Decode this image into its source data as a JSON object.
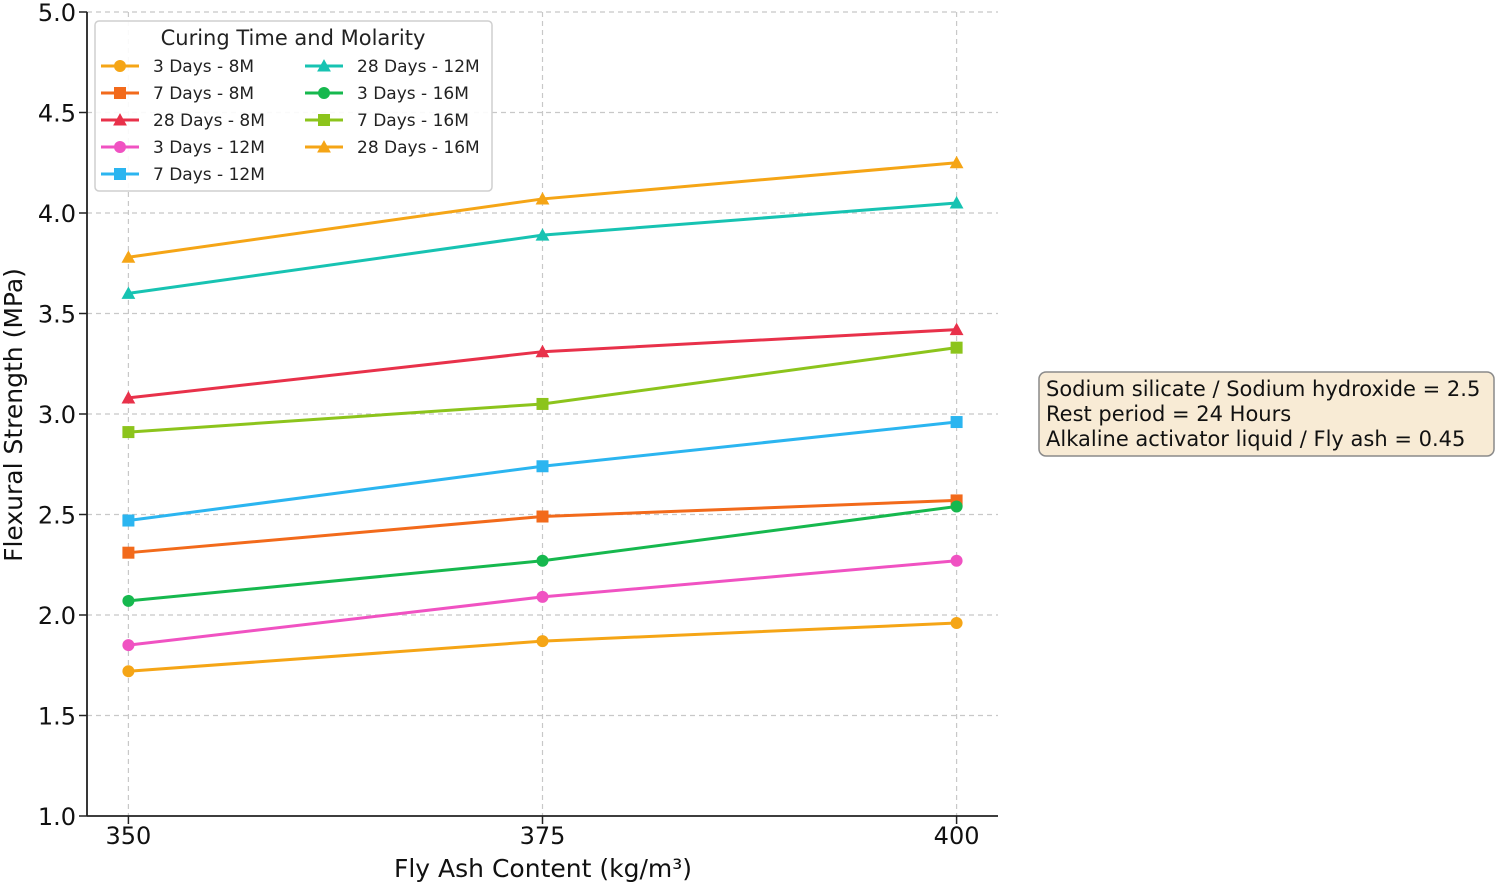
{
  "chart_data": {
    "type": "line",
    "title": "",
    "xlabel": "Fly Ash Content (kg/m³)",
    "ylabel": "Flexural Strength (MPa)",
    "x": [
      350,
      375,
      400
    ],
    "x_tick_labels": [
      "350",
      "375",
      "400"
    ],
    "xlim": [
      347.5,
      402.5
    ],
    "ylim": [
      1.0,
      5.0
    ],
    "y_ticks": [
      1.0,
      1.5,
      2.0,
      2.5,
      3.0,
      3.5,
      4.0,
      4.5,
      5.0
    ],
    "y_tick_labels": [
      "1.0",
      "1.5",
      "2.0",
      "2.5",
      "3.0",
      "3.5",
      "4.0",
      "4.5",
      "5.0"
    ],
    "grid": true,
    "legend": {
      "title": "Curing Time and Molarity",
      "placement": "top-left",
      "columns": 2
    },
    "series": [
      {
        "name": "3 Days - 8M",
        "values": [
          1.72,
          1.87,
          1.96
        ],
        "color": "#F5A516",
        "marker": "circle"
      },
      {
        "name": "7 Days - 8M",
        "values": [
          2.31,
          2.49,
          2.57
        ],
        "color": "#F26A1B",
        "marker": "square"
      },
      {
        "name": "28 Days - 8M",
        "values": [
          3.08,
          3.31,
          3.42
        ],
        "color": "#E8314A",
        "marker": "triangle"
      },
      {
        "name": "3 Days - 12M",
        "values": [
          1.85,
          2.09,
          2.27
        ],
        "color": "#F052C2",
        "marker": "circle"
      },
      {
        "name": "7 Days - 12M",
        "values": [
          2.47,
          2.74,
          2.96
        ],
        "color": "#2BB5F0",
        "marker": "square"
      },
      {
        "name": "28 Days - 12M",
        "values": [
          3.6,
          3.89,
          4.05
        ],
        "color": "#17C3B2",
        "marker": "triangle"
      },
      {
        "name": "3 Days - 16M",
        "values": [
          2.07,
          2.27,
          2.54
        ],
        "color": "#16B84E",
        "marker": "circle"
      },
      {
        "name": "7 Days - 16M",
        "values": [
          2.91,
          3.05,
          3.33
        ],
        "color": "#8CC41C",
        "marker": "square"
      },
      {
        "name": "28 Days - 16M",
        "values": [
          3.78,
          4.07,
          4.25
        ],
        "color": "#F5A516",
        "marker": "triangle"
      }
    ],
    "annotations": [
      "Sodium silicate / Sodium hydroxide = 2.5",
      "Rest period = 24 Hours",
      "Alkaline activator liquid / Fly ash = 0.45"
    ]
  }
}
